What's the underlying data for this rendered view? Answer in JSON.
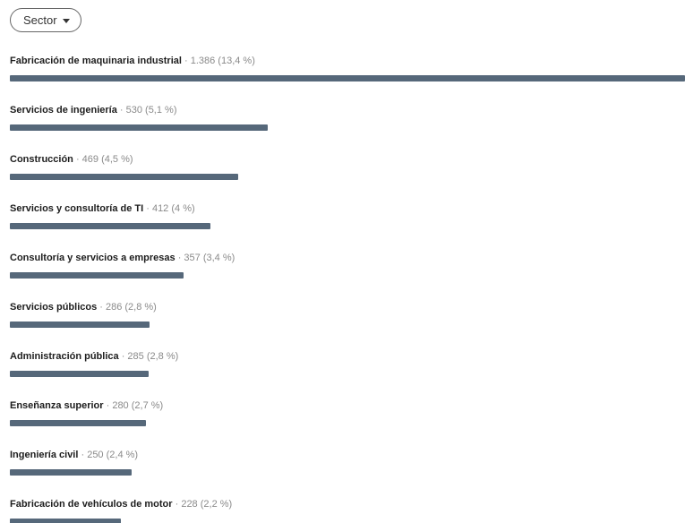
{
  "filter": {
    "label": "Sector"
  },
  "colors": {
    "bar": "#56687a",
    "label": "#1d1d1d",
    "stat": "#8a8a8a"
  },
  "chart_data": {
    "type": "bar",
    "orientation": "horizontal",
    "max_value": 1386,
    "categories": [
      "Fabricación de maquinaria industrial",
      "Servicios de ingeniería",
      "Construcción",
      "Servicios y consultoría de TI",
      "Consultoría y servicios a empresas",
      "Servicios públicos",
      "Administración pública",
      "Enseñanza superior",
      "Ingeniería civil",
      "Fabricación de vehículos de motor"
    ],
    "values": [
      1386,
      530,
      469,
      412,
      357,
      286,
      285,
      280,
      250,
      228
    ],
    "stats": [
      " · 1.386 (13,4 %)",
      " · 530 (5,1 %)",
      " · 469 (4,5 %)",
      " · 412 (4 %)",
      " · 357 (3,4 %)",
      " · 286 (2,8 %)",
      " · 285 (2,8 %)",
      " · 280 (2,7 %)",
      " · 250 (2,4 %)",
      " · 228 (2,2 %)"
    ]
  }
}
